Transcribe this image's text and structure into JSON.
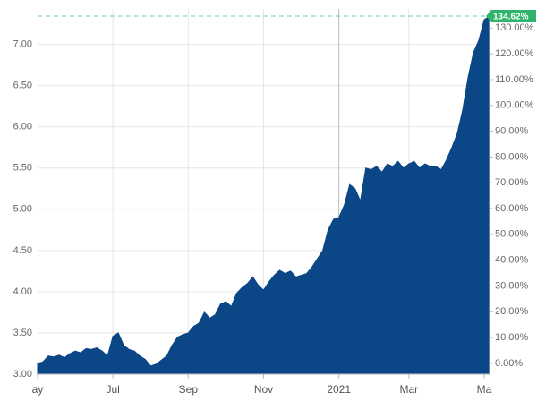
{
  "chart_data": {
    "type": "area",
    "color": "#0b4787",
    "grid": true,
    "categories": [
      "ay",
      null,
      null,
      null,
      null,
      null,
      null,
      null,
      null,
      null,
      null,
      null,
      null,
      null,
      "Jul",
      null,
      null,
      null,
      null,
      null,
      null,
      null,
      null,
      null,
      null,
      null,
      null,
      null,
      "Sep",
      null,
      null,
      null,
      null,
      null,
      null,
      null,
      null,
      null,
      null,
      null,
      null,
      null,
      "Nov",
      null,
      null,
      null,
      null,
      null,
      null,
      null,
      null,
      null,
      null,
      null,
      null,
      null,
      "2021",
      null,
      null,
      null,
      null,
      null,
      null,
      null,
      null,
      null,
      null,
      null,
      null,
      "Mar",
      null,
      null,
      null,
      null,
      null,
      null,
      null,
      null,
      null,
      null,
      null,
      null,
      null,
      "Ma",
      null
    ],
    "values": [
      3.13,
      3.15,
      3.22,
      3.21,
      3.23,
      3.2,
      3.25,
      3.28,
      3.26,
      3.31,
      3.3,
      3.32,
      3.28,
      3.22,
      3.46,
      3.5,
      3.35,
      3.3,
      3.28,
      3.22,
      3.18,
      3.1,
      3.12,
      3.17,
      3.22,
      3.35,
      3.45,
      3.48,
      3.5,
      3.58,
      3.62,
      3.75,
      3.68,
      3.72,
      3.85,
      3.88,
      3.82,
      3.98,
      4.05,
      4.1,
      4.18,
      4.08,
      4.02,
      4.12,
      4.2,
      4.26,
      4.22,
      4.25,
      4.18,
      4.2,
      4.22,
      4.3,
      4.4,
      4.5,
      4.75,
      4.88,
      4.9,
      5.05,
      5.3,
      5.25,
      5.1,
      5.5,
      5.48,
      5.52,
      5.45,
      5.55,
      5.52,
      5.58,
      5.5,
      5.55,
      5.58,
      5.5,
      5.55,
      5.52,
      5.52,
      5.48,
      5.6,
      5.75,
      5.92,
      6.2,
      6.6,
      6.9,
      7.05,
      7.3,
      7.34
    ],
    "ylim": [
      3.0,
      7.43
    ],
    "yticks": [
      {
        "value": 3.0,
        "label": "3.00"
      },
      {
        "value": 3.5,
        "label": "3.50"
      },
      {
        "value": 4.0,
        "label": "4.00"
      },
      {
        "value": 4.5,
        "label": "4.50"
      },
      {
        "value": 5.0,
        "label": "5.00"
      },
      {
        "value": 5.5,
        "label": "5.50"
      },
      {
        "value": 6.0,
        "label": "6.00"
      },
      {
        "value": 6.5,
        "label": "6.50"
      },
      {
        "value": 7.0,
        "label": "7.00"
      }
    ],
    "y2lim": [
      -4.2,
      137.4
    ],
    "y2ticks": [
      {
        "value": 0,
        "label": "0.00%"
      },
      {
        "value": 10,
        "label": "10.00%"
      },
      {
        "value": 20,
        "label": "20.00%"
      },
      {
        "value": 30,
        "label": "30.00%"
      },
      {
        "value": 40,
        "label": "40.00%"
      },
      {
        "value": 50,
        "label": "50.00%"
      },
      {
        "value": 60,
        "label": "60.00%"
      },
      {
        "value": 70,
        "label": "70.00%"
      },
      {
        "value": 80,
        "label": "80.00%"
      },
      {
        "value": 90,
        "label": "90.00%"
      },
      {
        "value": 100,
        "label": "100.00%"
      },
      {
        "value": 110,
        "label": "110.00%"
      },
      {
        "value": 120,
        "label": "120.00%"
      },
      {
        "value": 130,
        "label": "130.00%"
      }
    ],
    "last_change": {
      "value": 134.62,
      "label": "134.62%"
    }
  }
}
